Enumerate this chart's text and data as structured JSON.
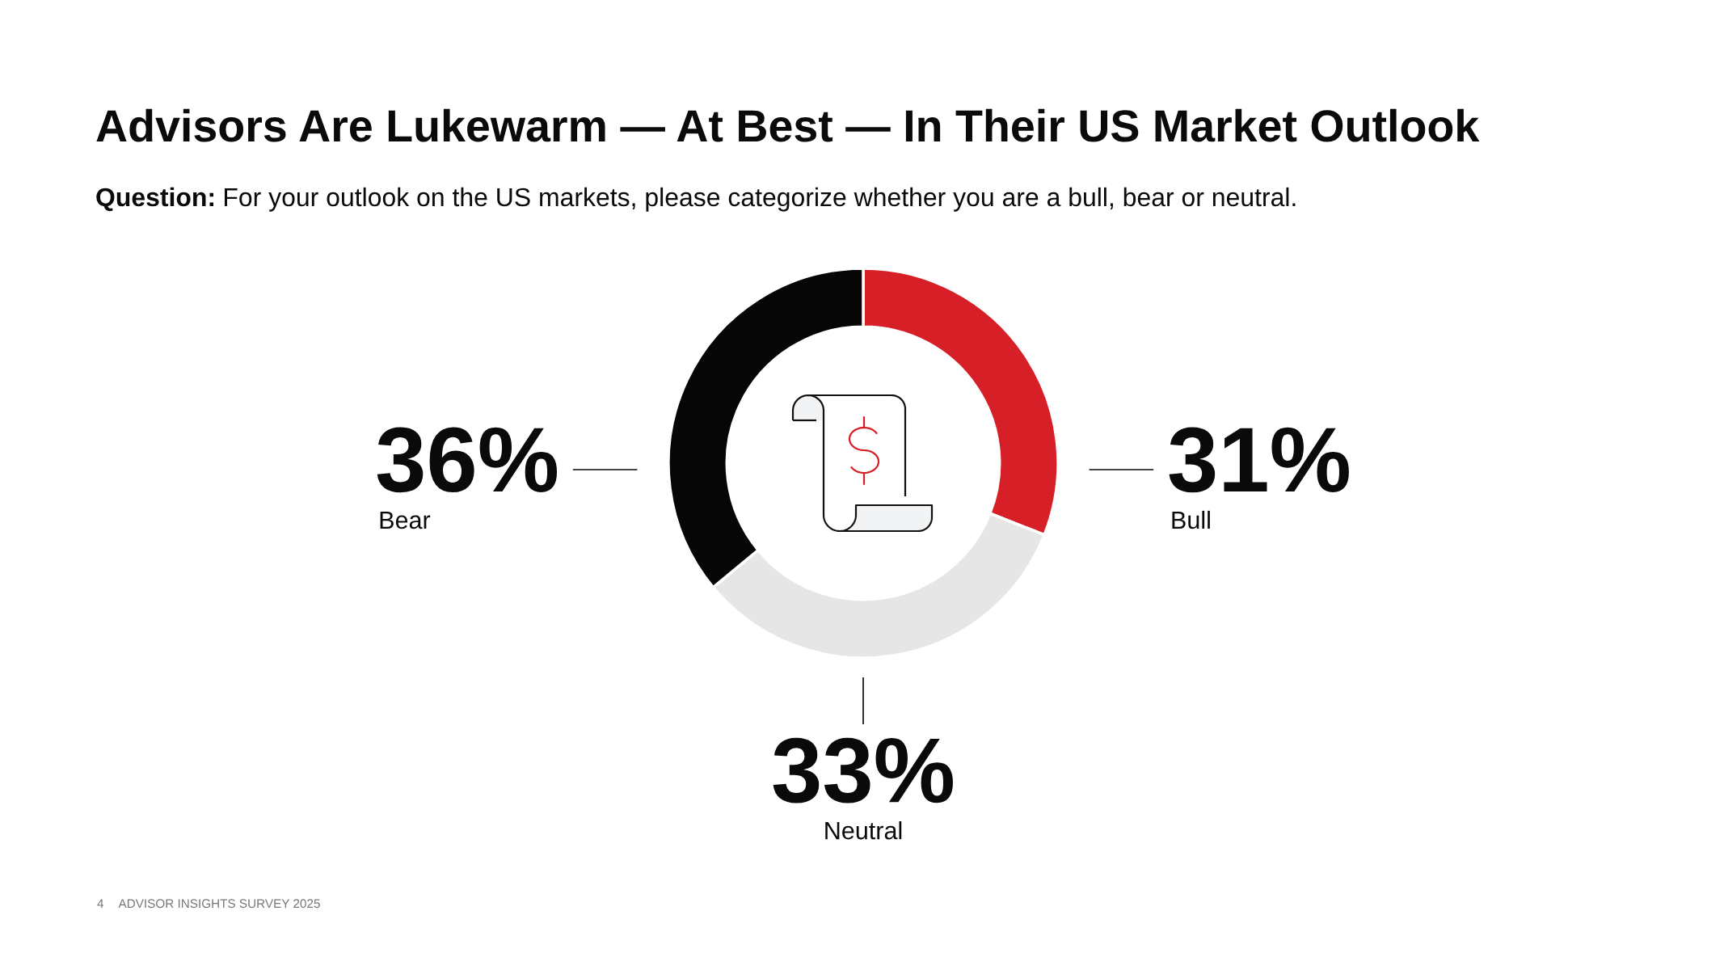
{
  "chart_data": {
    "type": "donut",
    "title": "Advisors Are Lukewarm — At Best — In Their US Market Outlook",
    "subtitle": "Question: For your outlook on the US markets, please categorize whether you are a bull, bear or neutral.",
    "categories": [
      "Bull",
      "Neutral",
      "Bear"
    ],
    "values": [
      31,
      33,
      36
    ],
    "value_labels": [
      "31%",
      "33%",
      "36%"
    ],
    "colors": [
      "#d71f27",
      "#e6e6e6",
      "#060606"
    ],
    "annotations": [
      "4",
      "ADVISOR INSIGHTS SURVEY 2025"
    ]
  }
}
